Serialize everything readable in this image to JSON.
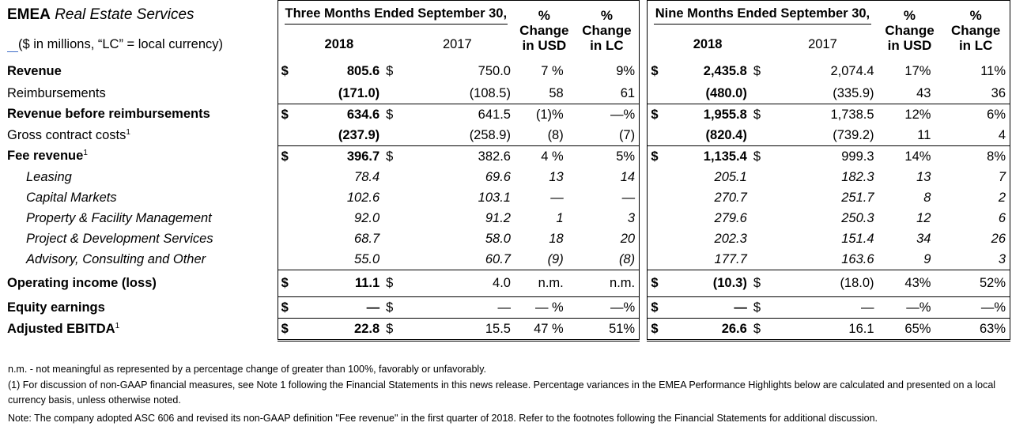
{
  "header": {
    "segment": "EMEA",
    "segment_italic": "Real Estate Services",
    "units_note": "($ in millions, “LC” = local currency)",
    "three_months": "Three Months Ended September 30,",
    "nine_months": "Nine Months Ended September 30,",
    "year_2018": "2018",
    "year_2017": "2017",
    "pct": "%",
    "change": "Change",
    "in_usd": "in USD",
    "in_lc": "in LC"
  },
  "dollar": "$",
  "rows": [
    {
      "label": "Revenue",
      "q_2018": "805.6",
      "q_2017": "750.0",
      "q_usd": "7 %",
      "q_lc": "9%",
      "n_2018": "2,435.8",
      "n_2017": "2,074.4",
      "n_usd": "17%",
      "n_lc": "11%"
    },
    {
      "label": "Reimbursements",
      "q_2018": "(171.0)",
      "q_2017": "(108.5)",
      "q_usd": "58",
      "q_lc": "61",
      "n_2018": "(480.0)",
      "n_2017": "(335.9)",
      "n_usd": "43",
      "n_lc": "36"
    },
    {
      "label": "Revenue before reimbursements",
      "q_2018": "634.6",
      "q_2017": "641.5",
      "q_usd": "(1)%",
      "q_lc": "—%",
      "n_2018": "1,955.8",
      "n_2017": "1,738.5",
      "n_usd": "12%",
      "n_lc": "6%"
    },
    {
      "label": "Gross contract costs",
      "sup": "1",
      "q_2018": "(237.9)",
      "q_2017": "(258.9)",
      "q_usd": "(8)",
      "q_lc": "(7)",
      "n_2018": "(820.4)",
      "n_2017": "(739.2)",
      "n_usd": "11",
      "n_lc": "4"
    },
    {
      "label": "Fee revenue",
      "sup": "1",
      "q_2018": "396.7",
      "q_2017": "382.6",
      "q_usd": "4 %",
      "q_lc": "5%",
      "n_2018": "1,135.4",
      "n_2017": "999.3",
      "n_usd": "14%",
      "n_lc": "8%"
    },
    {
      "label": "Leasing",
      "q_2018": "78.4",
      "q_2017": "69.6",
      "q_usd": "13",
      "q_lc": "14",
      "n_2018": "205.1",
      "n_2017": "182.3",
      "n_usd": "13",
      "n_lc": "7"
    },
    {
      "label": "Capital Markets",
      "q_2018": "102.6",
      "q_2017": "103.1",
      "q_usd": "—",
      "q_lc": "—",
      "n_2018": "270.7",
      "n_2017": "251.7",
      "n_usd": "8",
      "n_lc": "2"
    },
    {
      "label": "Property & Facility Management",
      "q_2018": "92.0",
      "q_2017": "91.2",
      "q_usd": "1",
      "q_lc": "3",
      "n_2018": "279.6",
      "n_2017": "250.3",
      "n_usd": "12",
      "n_lc": "6"
    },
    {
      "label": "Project & Development Services",
      "q_2018": "68.7",
      "q_2017": "58.0",
      "q_usd": "18",
      "q_lc": "20",
      "n_2018": "202.3",
      "n_2017": "151.4",
      "n_usd": "34",
      "n_lc": "26"
    },
    {
      "label": "Advisory, Consulting and Other",
      "q_2018": "55.0",
      "q_2017": "60.7",
      "q_usd": "(9)",
      "q_lc": "(8)",
      "n_2018": "177.7",
      "n_2017": "163.6",
      "n_usd": "9",
      "n_lc": "3"
    },
    {
      "label": "Operating income (loss)",
      "q_2018": "11.1",
      "q_2017": "4.0",
      "q_usd": "n.m.",
      "q_lc": "n.m.",
      "n_2018": "(10.3)",
      "n_2017": "(18.0)",
      "n_usd": "43%",
      "n_lc": "52%"
    },
    {
      "label": "Equity earnings",
      "q_2018": "—",
      "q_2017": "—",
      "q_usd": "— %",
      "q_lc": "—%",
      "n_2018": "—",
      "n_2017": "—",
      "n_usd": "—%",
      "n_lc": "—%"
    },
    {
      "label": "Adjusted EBITDA",
      "sup": "1",
      "q_2018": "22.8",
      "q_2017": "15.5",
      "q_usd": "47 %",
      "q_lc": "51%",
      "n_2018": "26.6",
      "n_2017": "16.1",
      "n_usd": "65%",
      "n_lc": "63%"
    }
  ],
  "notes": {
    "nm": "n.m. - not meaningful as represented by a percentage change of greater than 100%, favorably or unfavorably.",
    "note1": "(1) For discussion of non-GAAP financial measures, see Note 1 following the Financial Statements in this news release. Percentage variances in the EMEA Performance Highlights below are calculated and presented on a local currency basis, unless otherwise noted.",
    "asc": "Note: The company adopted ASC 606 and revised its non-GAAP definition \"Fee revenue\" in the first quarter of 2018. Refer to the footnotes following the Financial Statements for additional discussion."
  }
}
